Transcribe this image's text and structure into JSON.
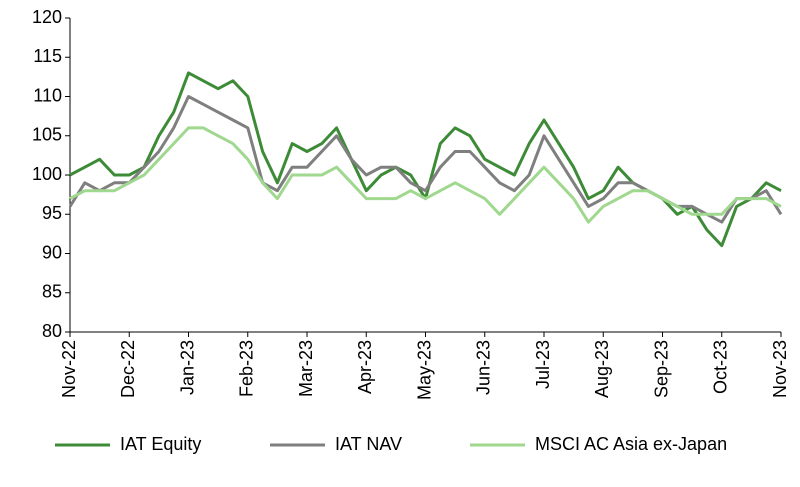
{
  "chart_data": {
    "type": "line",
    "x": [
      0,
      0.25,
      0.5,
      0.75,
      1,
      1.25,
      1.5,
      1.75,
      2,
      2.25,
      2.5,
      2.75,
      3,
      3.25,
      3.5,
      3.75,
      4,
      4.25,
      4.5,
      4.75,
      5,
      5.25,
      5.5,
      5.75,
      6,
      6.25,
      6.5,
      6.75,
      7,
      7.25,
      7.5,
      7.75,
      8,
      8.25,
      8.5,
      8.75,
      9,
      9.25,
      9.5,
      9.75,
      10,
      10.25,
      10.5,
      10.75,
      11,
      11.25,
      11.5,
      11.75,
      12
    ],
    "xlim": [
      0,
      12
    ],
    "xticks": [
      {
        "value": 0,
        "label": "Nov-22"
      },
      {
        "value": 1,
        "label": "Dec-22"
      },
      {
        "value": 2,
        "label": "Jan-23"
      },
      {
        "value": 3,
        "label": "Feb-23"
      },
      {
        "value": 4,
        "label": "Mar-23"
      },
      {
        "value": 5,
        "label": "Apr-23"
      },
      {
        "value": 6,
        "label": "May-23"
      },
      {
        "value": 7,
        "label": "Jun-23"
      },
      {
        "value": 8,
        "label": "Jul-23"
      },
      {
        "value": 9,
        "label": "Aug-23"
      },
      {
        "value": 10,
        "label": "Sep-23"
      },
      {
        "value": 11,
        "label": "Oct-23"
      },
      {
        "value": 12,
        "label": "Nov-23"
      }
    ],
    "ylim": [
      80,
      120
    ],
    "yticks": [
      80,
      85,
      90,
      95,
      100,
      105,
      110,
      115,
      120
    ],
    "grid": false,
    "legend": "bottom",
    "series": [
      {
        "name": "IAT Equity",
        "color": "#3d8b37",
        "values": [
          100,
          101,
          102,
          100,
          100,
          101,
          105,
          108,
          113,
          112,
          111,
          112,
          110,
          103,
          99,
          104,
          103,
          104,
          106,
          102,
          98,
          100,
          101,
          100,
          97,
          104,
          106,
          105,
          102,
          101,
          100,
          104,
          107,
          104,
          101,
          97,
          98,
          101,
          99,
          98,
          97,
          95,
          96,
          93,
          91,
          96,
          97,
          99,
          98
        ]
      },
      {
        "name": "IAT NAV",
        "color": "#7f7f7f",
        "values": [
          96,
          99,
          98,
          99,
          99,
          101,
          103,
          106,
          110,
          109,
          108,
          107,
          106,
          99,
          98,
          101,
          101,
          103,
          105,
          102,
          100,
          101,
          101,
          99,
          98,
          101,
          103,
          103,
          101,
          99,
          98,
          100,
          105,
          102,
          99,
          96,
          97,
          99,
          99,
          98,
          97,
          96,
          96,
          95,
          94,
          97,
          97,
          98,
          95
        ]
      },
      {
        "name": "MSCI AC Asia ex-Japan",
        "color": "#9fd88e",
        "values": [
          97,
          98,
          98,
          98,
          99,
          100,
          102,
          104,
          106,
          106,
          105,
          104,
          102,
          99,
          97,
          100,
          100,
          100,
          101,
          99,
          97,
          97,
          97,
          98,
          97,
          98,
          99,
          98,
          97,
          95,
          97,
          99,
          101,
          99,
          97,
          94,
          96,
          97,
          98,
          98,
          97,
          96,
          95,
          95,
          95,
          97,
          97,
          97,
          96
        ]
      }
    ]
  }
}
